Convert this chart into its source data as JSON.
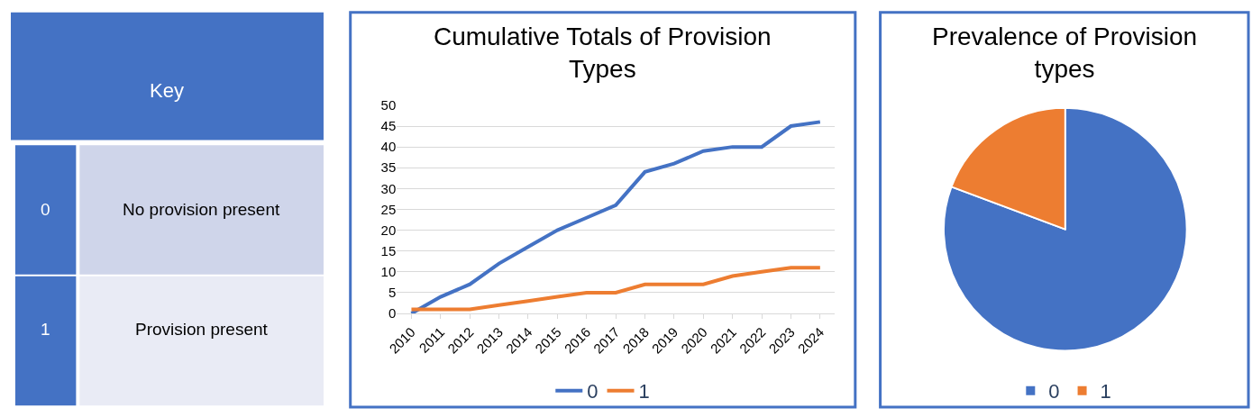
{
  "chart_data": [
    {
      "type": "other",
      "title": "Key",
      "annotations": [
        "0",
        "No provision present",
        "1",
        "Provision present"
      ]
    },
    {
      "type": "line",
      "title": "Cumulative Totals of Provision Types",
      "categories": [
        "2010",
        "2011",
        "2012",
        "2013",
        "2014",
        "2015",
        "2016",
        "2017",
        "2018",
        "2019",
        "2020",
        "2021",
        "2022",
        "2023",
        "2024"
      ],
      "series": [
        {
          "name": "0",
          "color": "#4472c4",
          "values": [
            0,
            4,
            7,
            12,
            16,
            20,
            23,
            26,
            34,
            36,
            39,
            40,
            40,
            45,
            46
          ]
        },
        {
          "name": "1",
          "color": "#ed7d31",
          "values": [
            1,
            1,
            1,
            2,
            3,
            4,
            5,
            5,
            7,
            7,
            7,
            9,
            10,
            11,
            11
          ]
        }
      ],
      "ylim": [
        0,
        50
      ],
      "yticks": [
        0,
        5,
        10,
        15,
        20,
        25,
        30,
        35,
        40,
        45,
        50
      ],
      "grid": "y",
      "legend": "bottom",
      "marker": "none",
      "line_style": "solid"
    },
    {
      "type": "pie",
      "title": "Prevalence of Provision types",
      "categories": [
        "0",
        "1"
      ],
      "values": [
        80.7,
        19.3
      ],
      "colors": [
        "#4472c4",
        "#ed7d31"
      ],
      "legend": "bottom"
    }
  ]
}
